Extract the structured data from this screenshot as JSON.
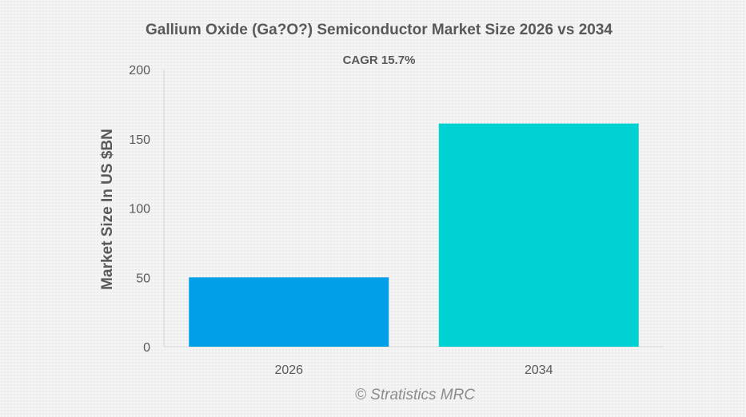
{
  "chart_data": {
    "type": "bar",
    "title": "Gallium Oxide (Ga?O?) Semiconductor Market Size 2026 vs 2034",
    "subtitle": "CAGR 15.7%",
    "xlabel": "",
    "ylabel": "Market Size In US $BN",
    "categories": [
      "2026",
      "2034"
    ],
    "values": [
      50,
      161
    ],
    "colors": [
      "#00a0e9",
      "#00d2d3"
    ],
    "ylim": [
      0,
      200
    ],
    "yticks": [
      0,
      50,
      100,
      150,
      200
    ],
    "grid": false,
    "legend": "none"
  },
  "credit": "© Stratistics MRC"
}
